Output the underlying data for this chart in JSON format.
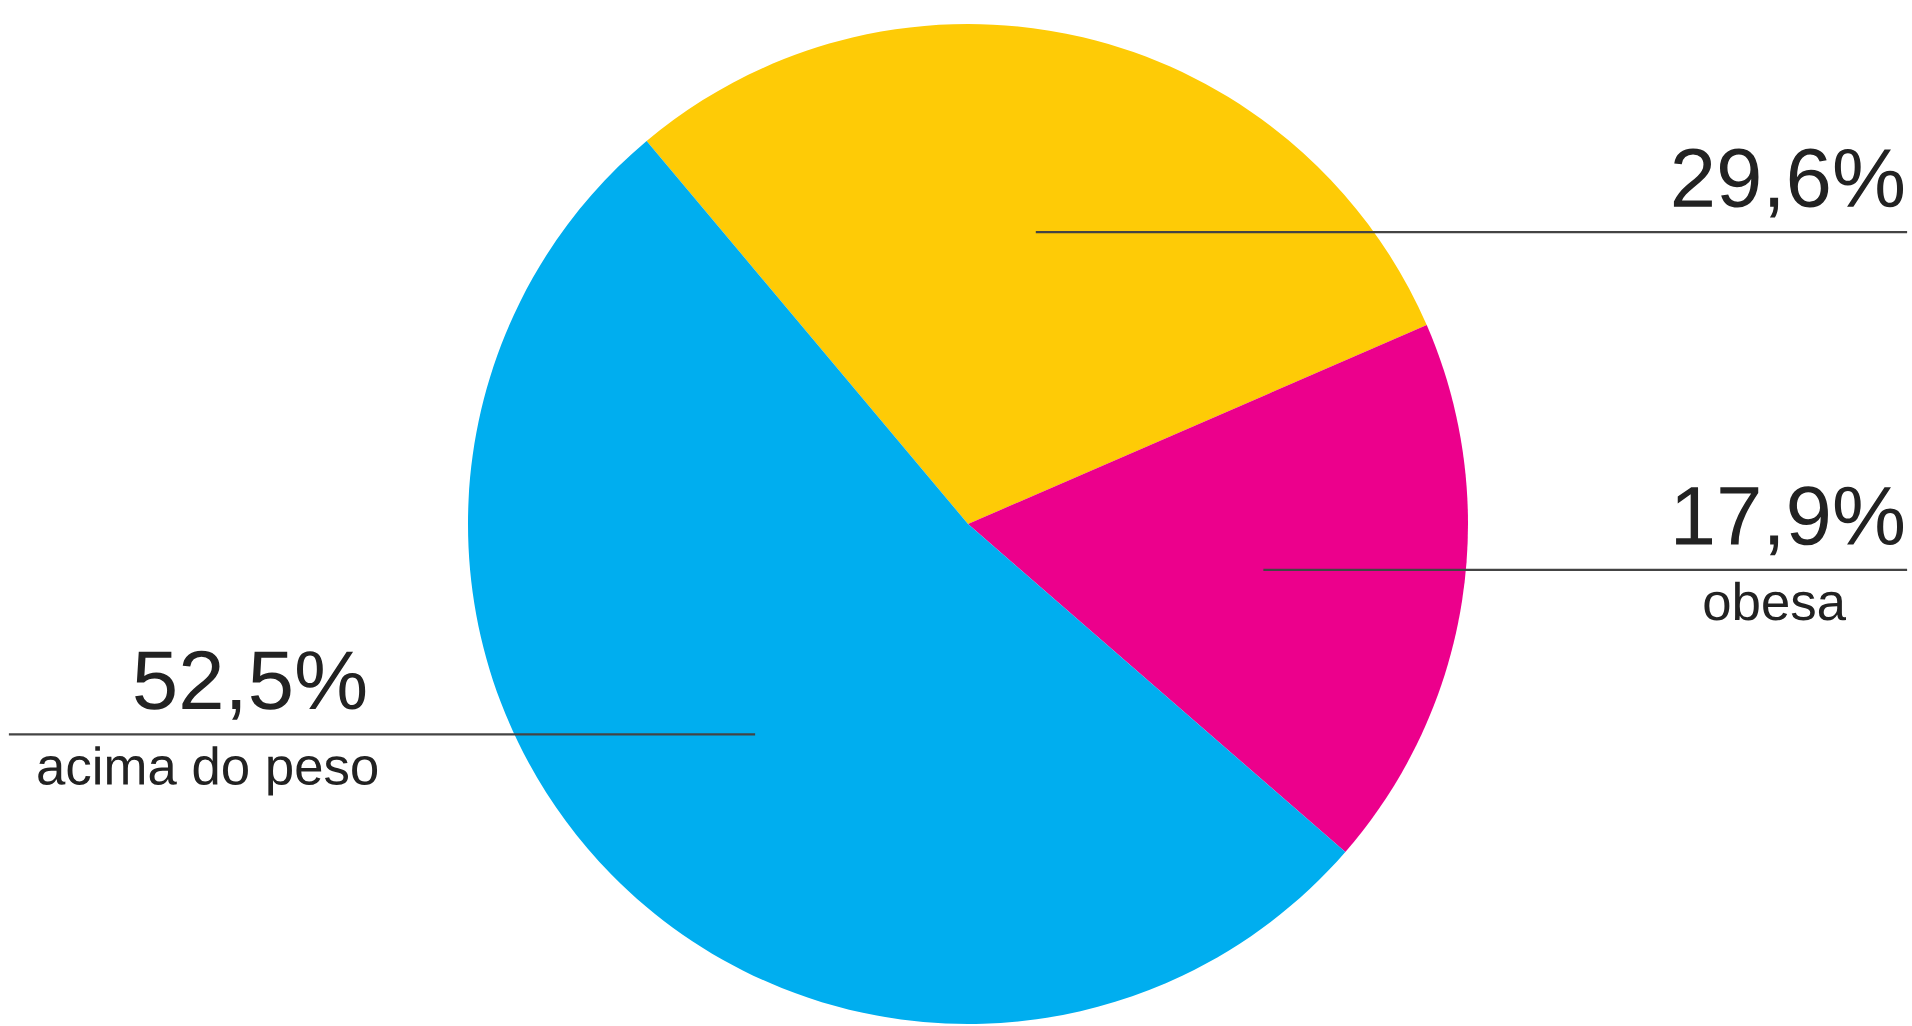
{
  "chart_data": {
    "type": "pie",
    "categories": [
      null,
      "obesa",
      "acima do peso"
    ],
    "values": [
      29.6,
      17.9,
      52.5
    ],
    "colors": [
      "#fecb06",
      "#ec008c",
      "#00aeef"
    ],
    "value_labels": [
      "29,6%",
      "17,9%",
      "52,5%"
    ]
  }
}
